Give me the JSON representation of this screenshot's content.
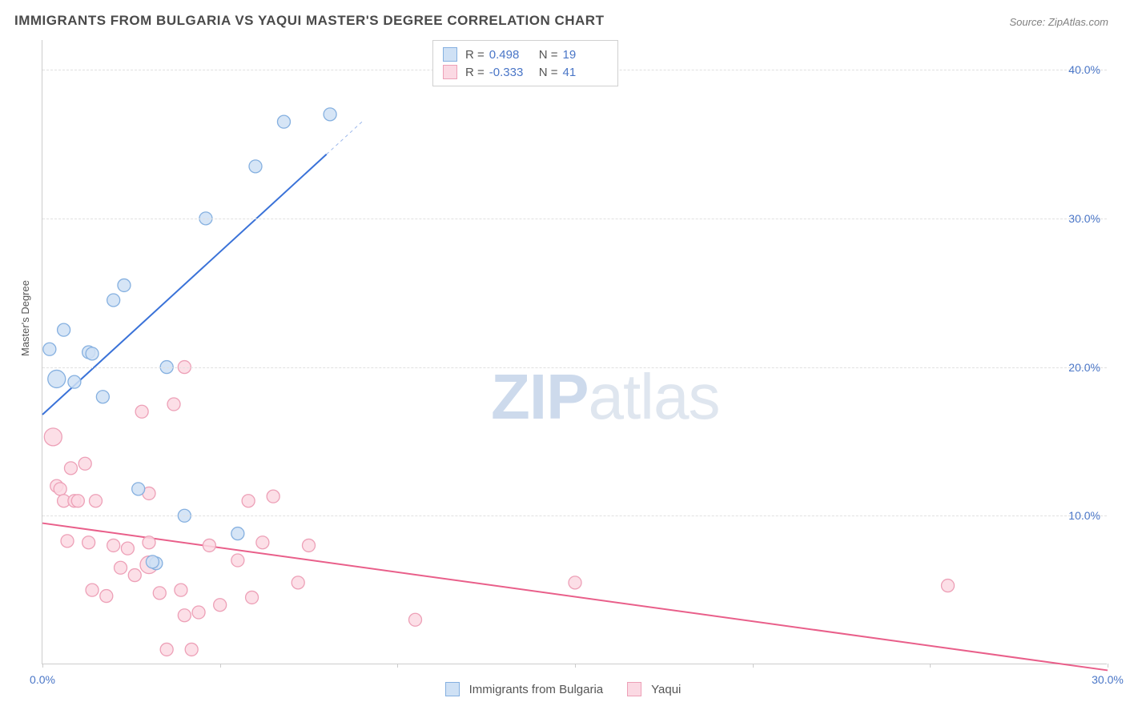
{
  "title": "IMMIGRANTS FROM BULGARIA VS YAQUI MASTER'S DEGREE CORRELATION CHART",
  "source": "Source: ZipAtlas.com",
  "ylabel": "Master's Degree",
  "watermark_zip": "ZIP",
  "watermark_atlas": "atlas",
  "chart": {
    "type": "scatter",
    "background_color": "#ffffff",
    "grid_color": "#e0e0e0",
    "axis_color": "#cccccc",
    "tick_label_color": "#4a76c7",
    "tick_fontsize": 14,
    "label_fontsize": 13,
    "title_fontsize": 17,
    "xlim": [
      0,
      30
    ],
    "ylim": [
      0,
      42
    ],
    "xticks": [
      0,
      5,
      10,
      15,
      20,
      25,
      30
    ],
    "xtick_labels": [
      "0.0%",
      "",
      "",
      "",
      "",
      "",
      "30.0%"
    ],
    "yticks": [
      10,
      20,
      30,
      40
    ],
    "ytick_labels": [
      "10.0%",
      "20.0%",
      "30.0%",
      "40.0%"
    ],
    "series": [
      {
        "name": "Immigrants from Bulgaria",
        "marker_color_fill": "#cfe1f5",
        "marker_color_stroke": "#85b0e0",
        "marker_radius": 8,
        "line_color": "#3a72d8",
        "line_width": 2,
        "trend": {
          "x1": 0,
          "y1": 16.8,
          "x2": 9,
          "y2": 36.5,
          "dash_from_x": 8
        },
        "R": "0.498",
        "N": "19",
        "points": [
          {
            "x": 0.2,
            "y": 21.2
          },
          {
            "x": 0.6,
            "y": 22.5
          },
          {
            "x": 0.4,
            "y": 19.2,
            "r": 11
          },
          {
            "x": 0.9,
            "y": 19.0
          },
          {
            "x": 1.3,
            "y": 21.0
          },
          {
            "x": 1.4,
            "y": 20.9
          },
          {
            "x": 1.7,
            "y": 18.0
          },
          {
            "x": 2.0,
            "y": 24.5
          },
          {
            "x": 2.3,
            "y": 25.5
          },
          {
            "x": 2.7,
            "y": 11.8
          },
          {
            "x": 3.5,
            "y": 20.0
          },
          {
            "x": 3.2,
            "y": 6.8
          },
          {
            "x": 3.1,
            "y": 6.9
          },
          {
            "x": 4.0,
            "y": 10.0
          },
          {
            "x": 4.6,
            "y": 30.0
          },
          {
            "x": 5.5,
            "y": 8.8
          },
          {
            "x": 6.0,
            "y": 33.5
          },
          {
            "x": 6.8,
            "y": 36.5
          },
          {
            "x": 8.1,
            "y": 37.0
          }
        ]
      },
      {
        "name": "Yaqui",
        "marker_color_fill": "#fbd9e3",
        "marker_color_stroke": "#eda0b7",
        "marker_radius": 8,
        "line_color": "#e95f8a",
        "line_width": 2,
        "trend": {
          "x1": 0,
          "y1": 9.5,
          "x2": 30,
          "y2": -0.4
        },
        "R": "-0.333",
        "N": "41",
        "points": [
          {
            "x": 0.3,
            "y": 15.3,
            "r": 11
          },
          {
            "x": 0.4,
            "y": 12.0
          },
          {
            "x": 0.5,
            "y": 11.8
          },
          {
            "x": 0.6,
            "y": 11.0
          },
          {
            "x": 0.8,
            "y": 13.2
          },
          {
            "x": 0.9,
            "y": 11.0
          },
          {
            "x": 0.7,
            "y": 8.3
          },
          {
            "x": 1.0,
            "y": 11.0
          },
          {
            "x": 1.2,
            "y": 13.5
          },
          {
            "x": 1.3,
            "y": 8.2
          },
          {
            "x": 1.4,
            "y": 5.0
          },
          {
            "x": 1.5,
            "y": 11.0
          },
          {
            "x": 1.8,
            "y": 4.6
          },
          {
            "x": 2.0,
            "y": 8.0
          },
          {
            "x": 2.2,
            "y": 6.5
          },
          {
            "x": 2.4,
            "y": 7.8
          },
          {
            "x": 2.6,
            "y": 6.0
          },
          {
            "x": 2.8,
            "y": 17.0
          },
          {
            "x": 3.0,
            "y": 11.5
          },
          {
            "x": 3.0,
            "y": 8.2
          },
          {
            "x": 3.0,
            "y": 6.7,
            "r": 11
          },
          {
            "x": 3.3,
            "y": 4.8
          },
          {
            "x": 3.5,
            "y": 1.0
          },
          {
            "x": 3.7,
            "y": 17.5
          },
          {
            "x": 3.9,
            "y": 5.0
          },
          {
            "x": 4.0,
            "y": 3.3
          },
          {
            "x": 4.2,
            "y": 1.0
          },
          {
            "x": 4.4,
            "y": 3.5
          },
          {
            "x": 4.7,
            "y": 8.0
          },
          {
            "x": 5.0,
            "y": 4.0
          },
          {
            "x": 4.0,
            "y": 20.0
          },
          {
            "x": 5.5,
            "y": 7.0
          },
          {
            "x": 5.8,
            "y": 11.0
          },
          {
            "x": 5.9,
            "y": 4.5
          },
          {
            "x": 6.2,
            "y": 8.2
          },
          {
            "x": 6.5,
            "y": 11.3
          },
          {
            "x": 7.2,
            "y": 5.5
          },
          {
            "x": 7.5,
            "y": 8.0
          },
          {
            "x": 10.5,
            "y": 3.0
          },
          {
            "x": 15.0,
            "y": 5.5
          },
          {
            "x": 25.5,
            "y": 5.3
          }
        ]
      }
    ],
    "legend_top": {
      "r_label": "R =",
      "n_label": "N ="
    },
    "legend_bottom_labels": [
      "Immigrants from Bulgaria",
      "Yaqui"
    ]
  }
}
